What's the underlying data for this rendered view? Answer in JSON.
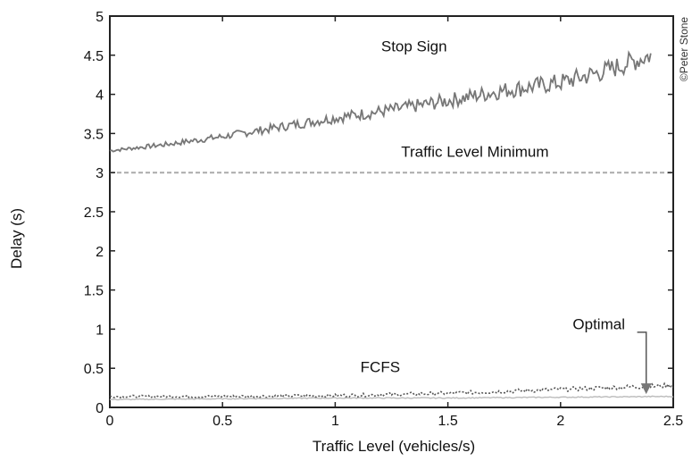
{
  "chart_data": {
    "type": "line",
    "xlabel": "Traffic Level (vehicles/s)",
    "ylabel": "Delay (s)",
    "xlim": [
      0,
      2.5
    ],
    "ylim": [
      0,
      5
    ],
    "xticks": [
      0,
      0.5,
      1,
      1.5,
      2,
      2.5
    ],
    "yticks": [
      0,
      0.5,
      1,
      1.5,
      2,
      2.5,
      3,
      3.5,
      4,
      4.5,
      5
    ],
    "xtick_labels": [
      "0",
      "0.5",
      "1",
      "1.5",
      "2",
      "2.5"
    ],
    "ytick_labels": [
      "0",
      "0.5",
      "1",
      "1.5",
      "2",
      "2.5",
      "3",
      "3.5",
      "4",
      "4.5",
      "5"
    ],
    "grid": false,
    "series": [
      {
        "name": "Stop Sign",
        "style": "solid-noisy",
        "color": "#777777",
        "x": [
          0,
          0.25,
          0.5,
          0.75,
          1.0,
          1.25,
          1.5,
          1.75,
          2.0,
          2.2,
          2.3,
          2.4
        ],
        "y": [
          3.28,
          3.36,
          3.46,
          3.58,
          3.7,
          3.8,
          3.92,
          4.05,
          4.15,
          4.3,
          4.4,
          4.5
        ]
      },
      {
        "name": "Traffic Level Minimum",
        "style": "dashed",
        "color": "#aaaaaa",
        "x": [
          0,
          2.5
        ],
        "y": [
          3.0,
          3.0
        ]
      },
      {
        "name": "FCFS",
        "style": "dotted-noisy",
        "color": "#555555",
        "x": [
          0,
          0.5,
          1.0,
          1.5,
          2.0,
          2.5
        ],
        "y": [
          0.14,
          0.14,
          0.15,
          0.18,
          0.23,
          0.28
        ]
      },
      {
        "name": "Optimal",
        "style": "solid-light",
        "color": "#bbbbbb",
        "x": [
          0,
          0.5,
          1.0,
          1.5,
          2.0,
          2.5
        ],
        "y": [
          0.1,
          0.11,
          0.12,
          0.12,
          0.13,
          0.14
        ]
      }
    ],
    "annotations": [
      {
        "text": "Stop Sign",
        "x": 1.35,
        "y": 4.55
      },
      {
        "text": "Traffic Level Minimum",
        "x": 1.62,
        "y": 3.2
      },
      {
        "text": "Optimal",
        "x": 2.17,
        "y": 1.0
      },
      {
        "text": "FCFS",
        "x": 1.2,
        "y": 0.45
      }
    ],
    "copyright": "©Peter Stone"
  }
}
